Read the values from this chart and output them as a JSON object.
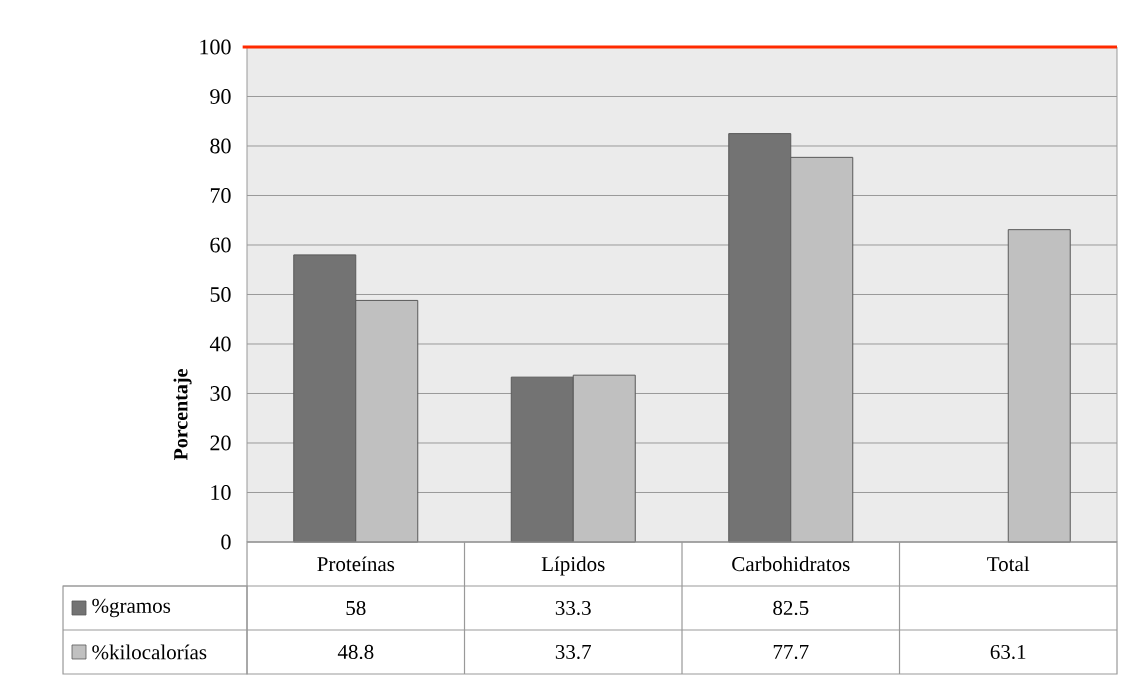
{
  "chart_data": {
    "type": "bar",
    "ylabel": "Porcentaje",
    "categories": [
      "Proteínas",
      "Lípidos",
      "Carbohidratos",
      "Total"
    ],
    "series": [
      {
        "name": "%gramos",
        "color": "#737373",
        "values": [
          58,
          33.3,
          82.5,
          null
        ]
      },
      {
        "name": "%kilocalorías",
        "color": "#c0c0c0",
        "values": [
          48.8,
          33.7,
          77.7,
          63.1
        ]
      }
    ],
    "ylim": [
      0,
      100
    ],
    "yticks": [
      0,
      10,
      20,
      30,
      40,
      50,
      60,
      70,
      80,
      90,
      100
    ],
    "grid": "y",
    "legend": "bottom left",
    "data_labels": true,
    "ref_lines": [
      {
        "axis": "y",
        "value": 100,
        "color": "#ff2a00"
      }
    ]
  }
}
